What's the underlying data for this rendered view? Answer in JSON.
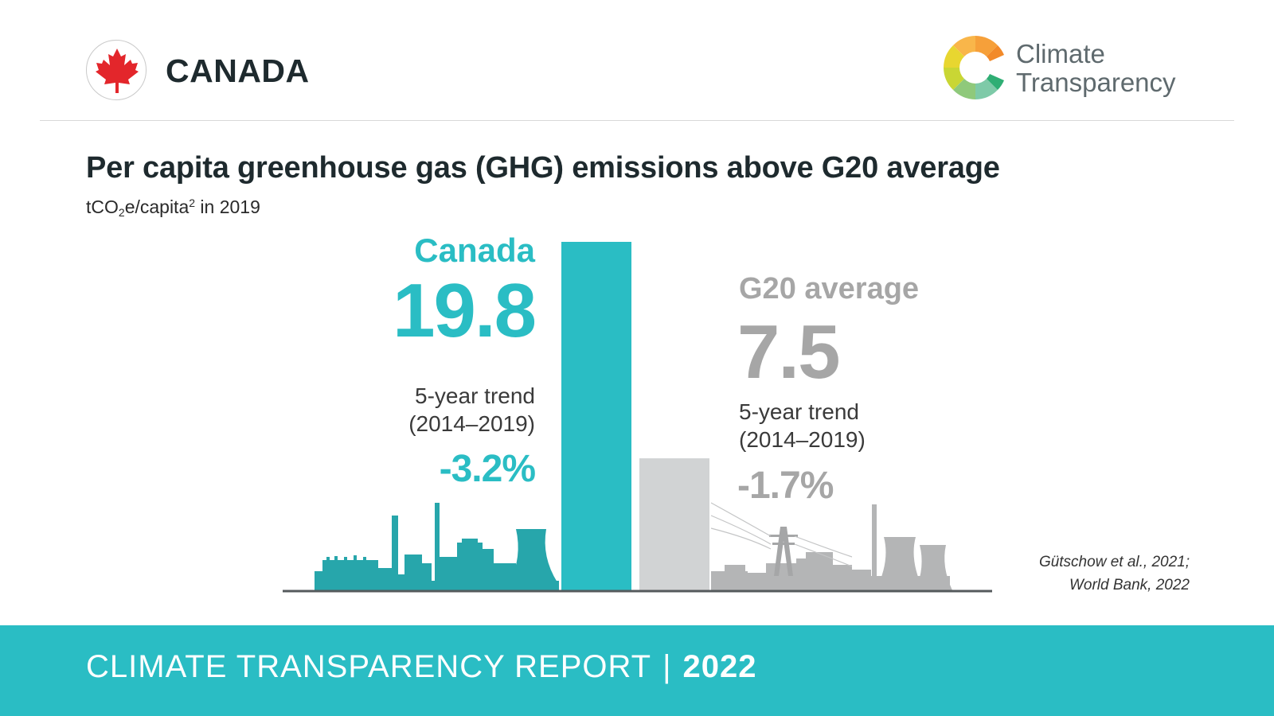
{
  "header": {
    "country": "CANADA",
    "flag_icon": "maple-leaf-icon",
    "logo_icon": "climate-transparency-logo-icon",
    "logo_line1": "Climate",
    "logo_line2": "Transparency"
  },
  "title": "Per capita greenhouse gas (GHG) emissions above G20 average",
  "subtitle": {
    "prefix": "tCO",
    "subscript": "2",
    "middle": "e/capita",
    "superscript": "2",
    "suffix": " in 2019"
  },
  "chart_data": {
    "type": "bar",
    "categories": [
      "Canada",
      "G20 average"
    ],
    "values": [
      19.8,
      7.5
    ],
    "value_labels": [
      "19.8",
      "7.5"
    ],
    "trend_label_line1": "5-year trend",
    "trend_label_line2": "(2014–2019)",
    "trends": [
      "-3.2%",
      "-1.7%"
    ],
    "colors": [
      "#2abdc4",
      "#d1d3d4"
    ],
    "label_colors": [
      "#2abdc4",
      "#a6a6a6"
    ],
    "ylim": [
      0,
      19.8
    ],
    "grid": false,
    "legend": "none",
    "decorations": [
      "factory-skyline-icon",
      "power-plant-skyline-icon"
    ]
  },
  "source": {
    "line1": "Gütschow et al., 2021;",
    "line2": "World Bank, 2022"
  },
  "footer": {
    "report": "CLIMATE TRANSPARENCY REPORT",
    "separator": "|",
    "year": "2022"
  }
}
